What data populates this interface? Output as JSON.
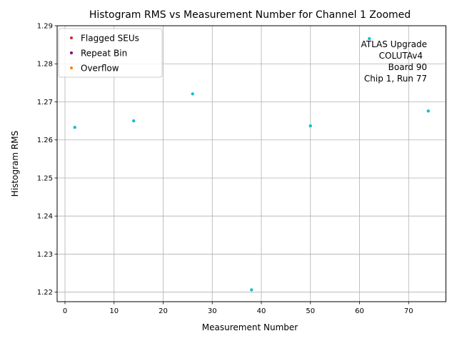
{
  "chart_data": {
    "type": "scatter",
    "title": "Histogram RMS vs Measurement Number for Channel 1 Zoomed",
    "xlabel": "Measurement Number",
    "ylabel": "Histogram RMS",
    "xlim": [
      -1.6,
      77.6
    ],
    "ylim": [
      1.2175,
      1.29
    ],
    "xticks": [
      0,
      10,
      20,
      30,
      40,
      50,
      60,
      70
    ],
    "yticks": [
      1.22,
      1.23,
      1.24,
      1.25,
      1.26,
      1.27,
      1.28,
      1.29
    ],
    "grid": true,
    "legend_position": "upper-left",
    "legend": [
      {
        "label": "Flagged SEUs",
        "color": "#d62728"
      },
      {
        "label": "Repeat Bin",
        "color": "#800080"
      },
      {
        "label": "Overflow",
        "color": "#ff7f0e"
      }
    ],
    "series": [
      {
        "color": "#17becf",
        "x": [
          2,
          14,
          26,
          38,
          50,
          62,
          74
        ],
        "y": [
          1.2633,
          1.265,
          1.2721,
          1.2206,
          1.2637,
          1.2866,
          1.2676
        ]
      }
    ],
    "annotation": [
      "ATLAS Upgrade",
      "COLUTAv4",
      "Board 90",
      "Chip 1, Run 77"
    ]
  }
}
